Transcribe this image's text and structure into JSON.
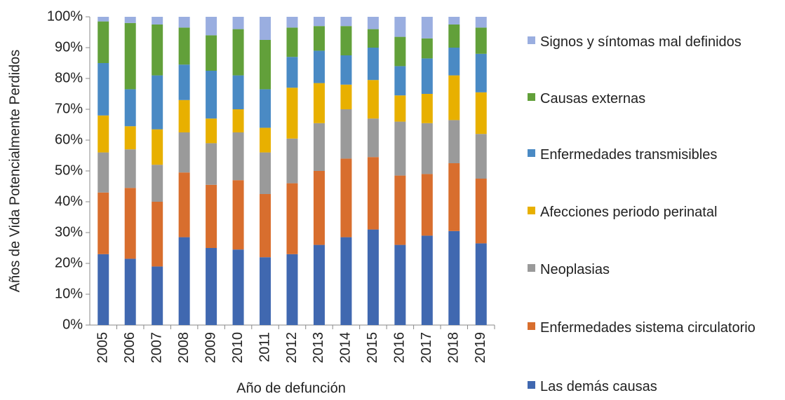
{
  "chart_data": {
    "type": "stacked_bar",
    "y_label": "Años de Vida Potencialmente Perdidos",
    "x_label": "Año de defunción",
    "categories": [
      "2005",
      "2006",
      "2007",
      "2008",
      "2009",
      "2010",
      "2011",
      "2012",
      "2013",
      "2014",
      "2015",
      "2016",
      "2017",
      "2018",
      "2019"
    ],
    "series": [
      {
        "name": "Las demás causas",
        "color": "#4068b0",
        "values": [
          23,
          21.5,
          19,
          28.5,
          25,
          24.5,
          22,
          23,
          26,
          28.5,
          31,
          26,
          29,
          30.5,
          26.5
        ]
      },
      {
        "name": "Enfermedades sistema circulatorio",
        "color": "#d86e2e",
        "values": [
          20,
          23,
          21,
          21,
          20.5,
          22.5,
          20.5,
          23,
          24,
          25.5,
          23.5,
          22.5,
          20,
          22,
          21
        ]
      },
      {
        "name": "Neoplasias",
        "color": "#9a9a9a",
        "values": [
          13,
          12.5,
          12,
          13,
          13.5,
          15.5,
          13.5,
          14.5,
          15.5,
          16,
          12.5,
          17.5,
          16.5,
          14,
          14.5
        ]
      },
      {
        "name": "Afecciones periodo perinatal",
        "color": "#e8b000",
        "values": [
          12,
          7.5,
          11.5,
          10.5,
          8,
          7.5,
          8,
          16.5,
          13,
          8,
          12.5,
          8.5,
          9.5,
          14.5,
          13.5
        ]
      },
      {
        "name": "Enfermedades transmisibles",
        "color": "#4a8ac4",
        "values": [
          17,
          12,
          17.5,
          11.5,
          15.5,
          11,
          12.5,
          10,
          10.5,
          9.5,
          10.5,
          9.5,
          11.5,
          9,
          12.5
        ]
      },
      {
        "name": "Causas externas",
        "color": "#62a03a",
        "values": [
          13.5,
          21.5,
          16.5,
          12,
          11.5,
          15,
          16,
          9.5,
          8,
          9.5,
          6,
          9.5,
          6.5,
          7.5,
          8.5
        ]
      },
      {
        "name": "Signos y síntomas mal definidos",
        "color": "#9aaee0",
        "values": [
          1.5,
          2,
          2.5,
          3.5,
          6,
          4,
          7.5,
          3.5,
          3,
          3,
          4,
          6.5,
          7,
          2.5,
          3.5
        ]
      }
    ],
    "ylim": [
      0,
      100
    ],
    "yticks": [
      {
        "value": 0,
        "label": "0%"
      },
      {
        "value": 10,
        "label": "10%"
      },
      {
        "value": 20,
        "label": "20%"
      },
      {
        "value": 30,
        "label": "30%"
      },
      {
        "value": 40,
        "label": "40%"
      },
      {
        "value": 50,
        "label": "50%"
      },
      {
        "value": 60,
        "label": "60%"
      },
      {
        "value": 70,
        "label": "70%"
      },
      {
        "value": 80,
        "label": "80%"
      },
      {
        "value": 90,
        "label": "90%"
      },
      {
        "value": 100,
        "label": "100%"
      }
    ],
    "legend": "right"
  }
}
